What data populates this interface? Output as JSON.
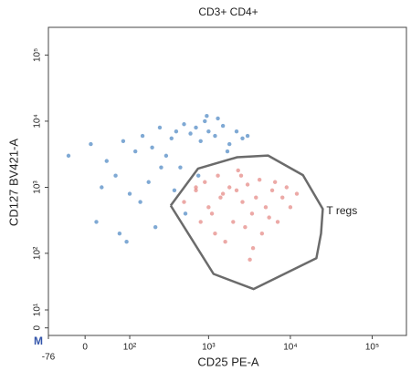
{
  "chart_data": {
    "type": "scatter",
    "title": "CD3+ CD4+",
    "x_label": "CD25 PE-A",
    "y_label": "CD127 BV421-A",
    "corner_label": "M",
    "xscale": "biexponential",
    "yscale": "biexponential",
    "xlim": [
      -76,
      262144
    ],
    "ylim": [
      -4,
      262144
    ],
    "xticks": [
      -76,
      0,
      {
        "value": 100,
        "label": "10²"
      },
      {
        "value": 1000,
        "label": "10³"
      },
      {
        "value": 10000,
        "label": "10⁴"
      },
      {
        "value": 100000,
        "label": "10⁵"
      }
    ],
    "yticks": [
      0,
      {
        "value": 10,
        "label": "10¹"
      },
      {
        "value": 100,
        "label": "10²"
      },
      {
        "value": 1000,
        "label": "10³"
      },
      {
        "value": 10000,
        "label": "10⁴"
      },
      {
        "value": 100000,
        "label": "10⁵"
      }
    ],
    "series": [
      {
        "color": "#2a6fb8",
        "x": [
          -30,
          10,
          40,
          80,
          120,
          150,
          200,
          250,
          300,
          350,
          400,
          450,
          500,
          600,
          700,
          800,
          900,
          1000,
          1200,
          1500,
          1800,
          2200,
          2600,
          3000,
          60,
          100,
          180,
          260,
          380,
          520,
          750,
          950,
          1300,
          1700,
          20,
          90,
          140,
          220,
          30,
          70
        ],
        "y": [
          3000,
          4500,
          2500,
          5000,
          3500,
          6000,
          4000,
          8000,
          3000,
          5500,
          7000,
          2000,
          9000,
          6500,
          8000,
          5000,
          10000,
          7000,
          6000,
          8500,
          4500,
          7000,
          5500,
          6000,
          1500,
          800,
          1200,
          2000,
          900,
          400,
          1500,
          12000,
          11000,
          3500,
          300,
          150,
          600,
          250,
          1000,
          200
        ]
      },
      {
        "color": "#e0706a",
        "x": [
          500,
          700,
          900,
          1100,
          1300,
          1500,
          1800,
          2000,
          2300,
          2600,
          3000,
          3400,
          3800,
          4200,
          5000,
          6000,
          7000,
          8000,
          10000,
          12000,
          800,
          1200,
          1600,
          2200,
          2800,
          3500,
          4500,
          5500,
          700,
          1000,
          1400,
          2500,
          3200,
          6500,
          9000
        ],
        "y": [
          600,
          900,
          1200,
          400,
          1500,
          800,
          1000,
          300,
          1800,
          600,
          1100,
          400,
          700,
          1300,
          500,
          900,
          300,
          700,
          500,
          800,
          300,
          200,
          150,
          900,
          250,
          120,
          200,
          350,
          1000,
          500,
          700,
          1500,
          80,
          1200,
          1000
        ]
      }
    ],
    "gate": {
      "label": "T regs",
      "color": "#6b6b6b",
      "x": [
        342,
        744,
        2240,
        5340,
        14260,
        24900,
        23700,
        20800,
        3550,
        1150,
        342
      ],
      "y": [
        530,
        1920,
        2850,
        3030,
        1530,
        470,
        200,
        84,
        27,
        48,
        530
      ]
    }
  }
}
